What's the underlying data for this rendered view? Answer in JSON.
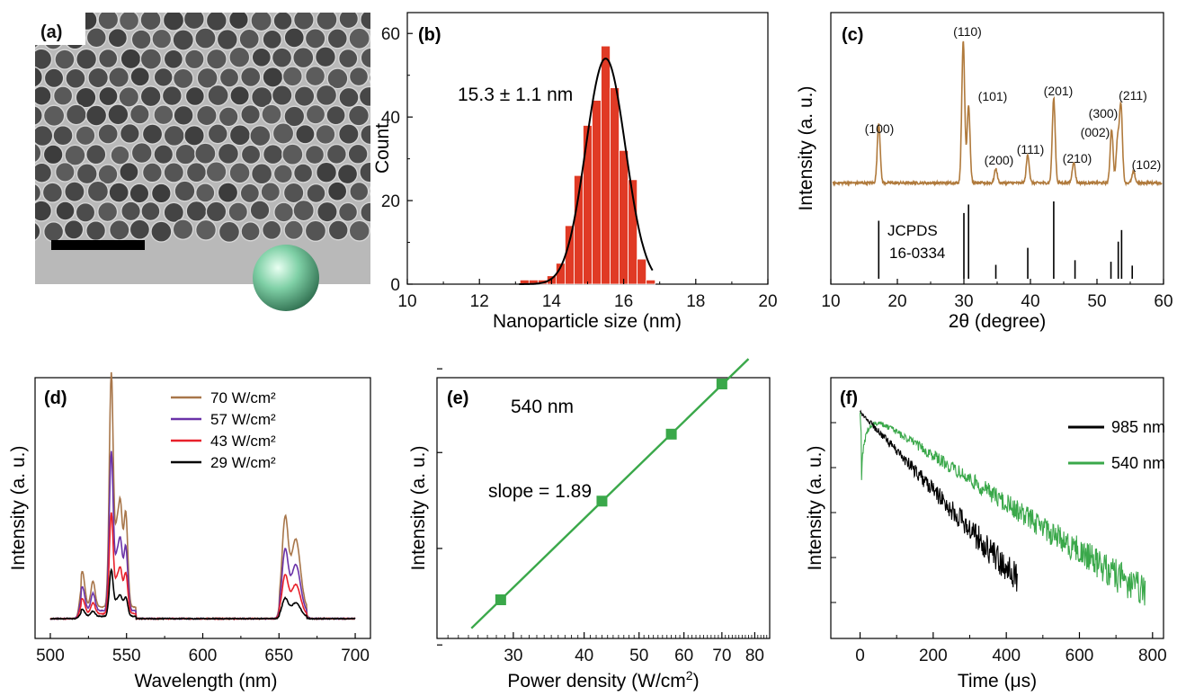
{
  "panels": {
    "a": {
      "tag": "(a)"
    },
    "b": {
      "tag": "(b)",
      "annotation": "15.3 ± 1.1 nm"
    },
    "c": {
      "tag": "(c)",
      "reference_label_1": "JCPDS",
      "reference_label_2": "16-0334"
    },
    "d": {
      "tag": "(d)"
    },
    "e": {
      "tag": "(e)",
      "annotation": "540 nm",
      "slope_label": "slope = 1.89"
    },
    "f": {
      "tag": "(f)"
    }
  },
  "colors": {
    "bar_red": "#e03a25",
    "fit_black": "#000000",
    "xrd_brown": "#b07a3c",
    "ref_black": "#000000",
    "s70": "#a8764a",
    "s57": "#6a32a8",
    "s43": "#e8202a",
    "s29": "#000000",
    "green": "#3aa84a",
    "sphere": "#7fd0a6"
  },
  "chart_data": [
    {
      "id": "b",
      "type": "bar",
      "xlabel": "Nanoparticle size (nm)",
      "ylabel": "Count",
      "xlim": [
        10,
        20
      ],
      "ylim": [
        0,
        65
      ],
      "xticks": [
        10,
        12,
        14,
        16,
        18,
        20
      ],
      "yticks": [
        0,
        20,
        40,
        60
      ],
      "bin_width": 0.25,
      "bins": [
        13.25,
        13.5,
        13.75,
        14.0,
        14.25,
        14.5,
        14.75,
        15.0,
        15.25,
        15.5,
        15.75,
        16.0,
        16.25,
        16.5,
        16.75
      ],
      "values": [
        1,
        1,
        1,
        2,
        5,
        14,
        26,
        38,
        44,
        57,
        47,
        32,
        25,
        6,
        1
      ],
      "fit": {
        "type": "gaussian",
        "center": 15.5,
        "sigma": 0.55,
        "amplitude": 54,
        "x_range": [
          13.1,
          16.8
        ]
      }
    },
    {
      "id": "c",
      "type": "line",
      "xlabel": "2θ (degree)",
      "ylabel": "Intensity (a. u.)",
      "xlim": [
        10,
        60
      ],
      "xticks": [
        10,
        20,
        30,
        40,
        50,
        60
      ],
      "peaks": [
        {
          "x": 17.2,
          "h": 0.42,
          "label": "(100)"
        },
        {
          "x": 29.9,
          "h": 1.0,
          "label": "(110)"
        },
        {
          "x": 30.7,
          "h": 0.55,
          "label": "(101)"
        },
        {
          "x": 34.8,
          "h": 0.1,
          "label": "(200)"
        },
        {
          "x": 39.6,
          "h": 0.2,
          "label": "(111)"
        },
        {
          "x": 43.5,
          "h": 0.6,
          "label": "(201)"
        },
        {
          "x": 46.5,
          "h": 0.15,
          "label": "(210)"
        },
        {
          "x": 52.2,
          "h": 0.38,
          "label": "(002)"
        },
        {
          "x": 53.6,
          "h": 0.55,
          "label": "(211)"
        },
        {
          "x": 53.1,
          "h": 0.3,
          "label": "(300)"
        },
        {
          "x": 55.5,
          "h": 0.08,
          "label": "(102)"
        }
      ],
      "reference_lines": [
        {
          "x": 17.2,
          "h": 0.75
        },
        {
          "x": 30.0,
          "h": 0.85
        },
        {
          "x": 30.7,
          "h": 0.96
        },
        {
          "x": 34.8,
          "h": 0.18
        },
        {
          "x": 39.6,
          "h": 0.4
        },
        {
          "x": 43.5,
          "h": 1.0
        },
        {
          "x": 46.7,
          "h": 0.24
        },
        {
          "x": 52.1,
          "h": 0.22
        },
        {
          "x": 53.2,
          "h": 0.48
        },
        {
          "x": 53.7,
          "h": 0.63
        },
        {
          "x": 55.3,
          "h": 0.17
        }
      ]
    },
    {
      "id": "d",
      "type": "line",
      "xlabel": "Wavelength (nm)",
      "ylabel": "Intensity (a. u.)",
      "xlim": [
        490,
        710
      ],
      "xticks": [
        500,
        550,
        600,
        650,
        700
      ],
      "series": [
        {
          "name": "70 W/cm²",
          "scale": 1.0
        },
        {
          "name": "57 W/cm²",
          "scale": 0.68
        },
        {
          "name": "43 W/cm²",
          "scale": 0.43
        },
        {
          "name": "29 W/cm²",
          "scale": 0.2
        }
      ],
      "peaks": [
        {
          "x": 521,
          "h": 0.15,
          "w": 1.6
        },
        {
          "x": 528,
          "h": 0.11,
          "w": 1.4
        },
        {
          "x": 540,
          "h": 1.0,
          "w": 1.3
        },
        {
          "x": 546,
          "h": 0.42,
          "w": 1.3
        },
        {
          "x": 549.5,
          "h": 0.4,
          "w": 1.3
        },
        {
          "x": 543.5,
          "h": 0.28,
          "w": 1.2
        },
        {
          "x": 654,
          "h": 0.38,
          "w": 2.0
        },
        {
          "x": 661,
          "h": 0.3,
          "w": 3.0
        }
      ]
    },
    {
      "id": "e",
      "type": "scatter",
      "xlabel": "Power density (W/cm²)",
      "ylabel": "Intensity (a. u.)",
      "x_scale": "log",
      "y_scale": "log",
      "xlim": [
        22,
        85
      ],
      "xticks": [
        30,
        40,
        50,
        60,
        70,
        80
      ],
      "x": [
        28.5,
        43.0,
        57.0,
        70.0
      ],
      "y": [
        1.0,
        2.18,
        3.7,
        5.5
      ],
      "fit": {
        "slope": 1.89,
        "x_range": [
          25.3,
          78
        ]
      }
    },
    {
      "id": "f",
      "type": "line",
      "xlabel": "Time (μs)",
      "ylabel": "Intensity (a. u.)",
      "xlim": [
        -80,
        830
      ],
      "xticks": [
        0,
        200,
        400,
        600,
        800
      ],
      "series": [
        {
          "name": "985 nm",
          "tau": 95,
          "rise": 0
        },
        {
          "name": "540 nm",
          "tau": 155,
          "rise": 22
        }
      ]
    }
  ],
  "particle_image": {
    "grid_cols": 16,
    "grid_rows": 11,
    "colors": {
      "background": "#b8b8b8",
      "particle": "#4a4a4a"
    }
  }
}
